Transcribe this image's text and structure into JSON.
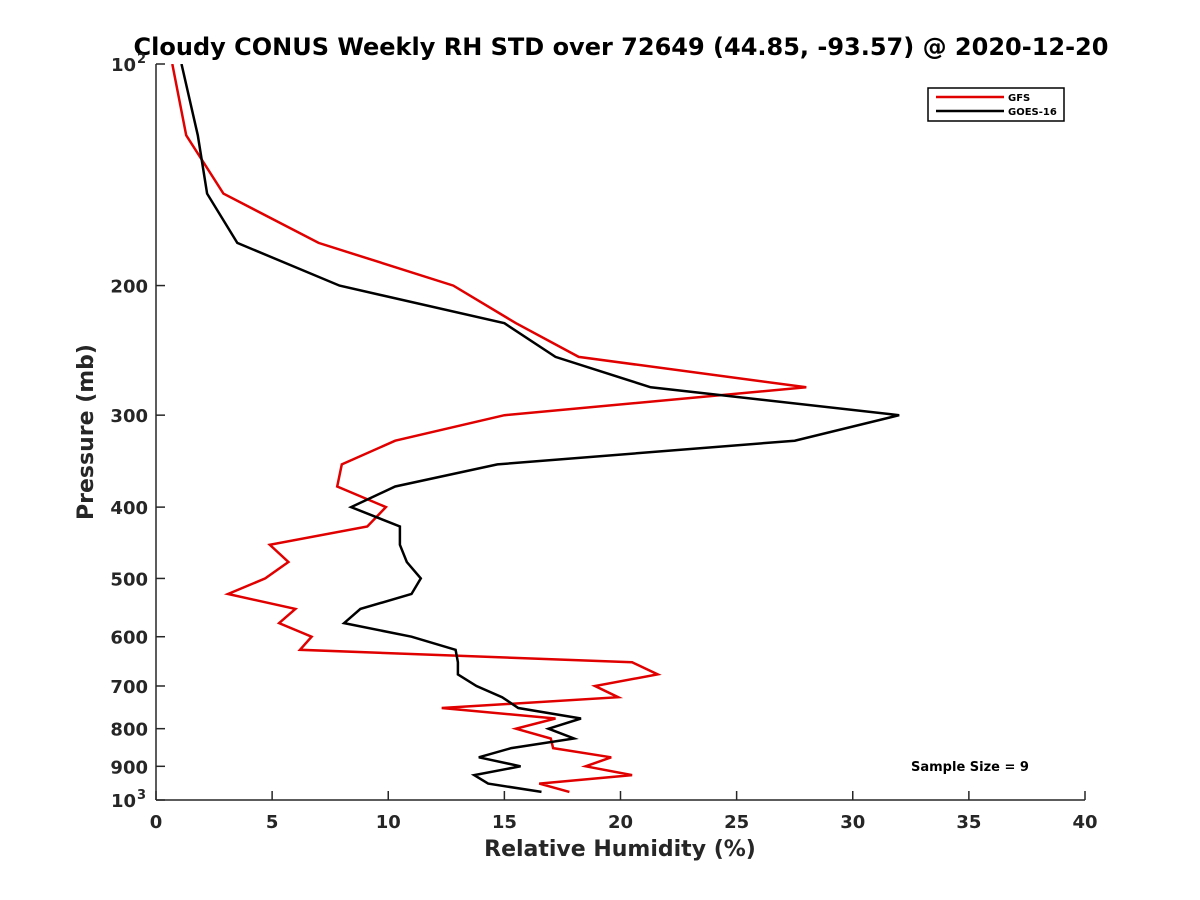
{
  "chart_data": {
    "type": "line",
    "title": "Cloudy CONUS Weekly RH STD over 72649 (44.85, -93.57) @ 2020-12-20",
    "xlabel": "Relative Humidity (%)",
    "ylabel": "Pressure (mb)",
    "xlim": [
      0,
      40
    ],
    "ylim": [
      100,
      1000
    ],
    "yscale": "log",
    "y_reversed": true,
    "grid": false,
    "legend_position": "top-right",
    "x_ticks": [
      0,
      5,
      10,
      15,
      20,
      25,
      30,
      35,
      40
    ],
    "x_tick_labels": [
      "0",
      "5",
      "10",
      "15",
      "20",
      "25",
      "30",
      "35",
      "40"
    ],
    "y_ticks": [
      100,
      200,
      300,
      400,
      500,
      600,
      700,
      800,
      900,
      1000
    ],
    "y_tick_labels": [
      "10^2",
      "200",
      "300",
      "400",
      "500",
      "600",
      "700",
      "800",
      "900",
      "10^3"
    ],
    "annotation": "Sample Size = 9",
    "series": [
      {
        "name": "GFS",
        "color": "#e00000",
        "pressure": [
          100,
          125,
          150,
          175,
          200,
          225,
          250,
          275,
          300,
          325,
          350,
          375,
          400,
          425,
          450,
          475,
          500,
          525,
          550,
          575,
          600,
          625,
          650,
          675,
          700,
          725,
          750,
          775,
          800,
          825,
          850,
          875,
          900,
          925,
          950,
          975
        ],
        "values": [
          0.7,
          1.3,
          2.9,
          7.0,
          12.8,
          15.5,
          18.2,
          28.0,
          15.0,
          10.3,
          8.0,
          7.8,
          9.9,
          9.1,
          4.9,
          5.7,
          4.7,
          3.1,
          6.0,
          5.3,
          6.7,
          6.2,
          20.5,
          21.6,
          18.9,
          19.9,
          12.3,
          17.2,
          15.5,
          17.0,
          17.1,
          19.6,
          18.5,
          20.5,
          16.5,
          17.8
        ]
      },
      {
        "name": "GOES-16",
        "color": "#000000",
        "pressure": [
          100,
          125,
          150,
          175,
          200,
          225,
          250,
          275,
          300,
          325,
          350,
          375,
          400,
          425,
          450,
          475,
          500,
          525,
          550,
          575,
          600,
          625,
          650,
          675,
          700,
          725,
          750,
          775,
          800,
          825,
          850,
          875,
          900,
          925,
          950,
          975
        ],
        "values": [
          1.1,
          1.8,
          2.2,
          3.5,
          7.9,
          15.0,
          17.2,
          21.3,
          32.0,
          27.5,
          14.7,
          10.3,
          8.4,
          10.5,
          10.5,
          10.8,
          11.4,
          11.0,
          8.8,
          8.1,
          11.0,
          12.9,
          13.0,
          13.0,
          13.8,
          14.9,
          15.6,
          18.3,
          16.9,
          18.0,
          15.3,
          13.9,
          15.7,
          13.7,
          14.3,
          16.6
        ]
      }
    ]
  }
}
